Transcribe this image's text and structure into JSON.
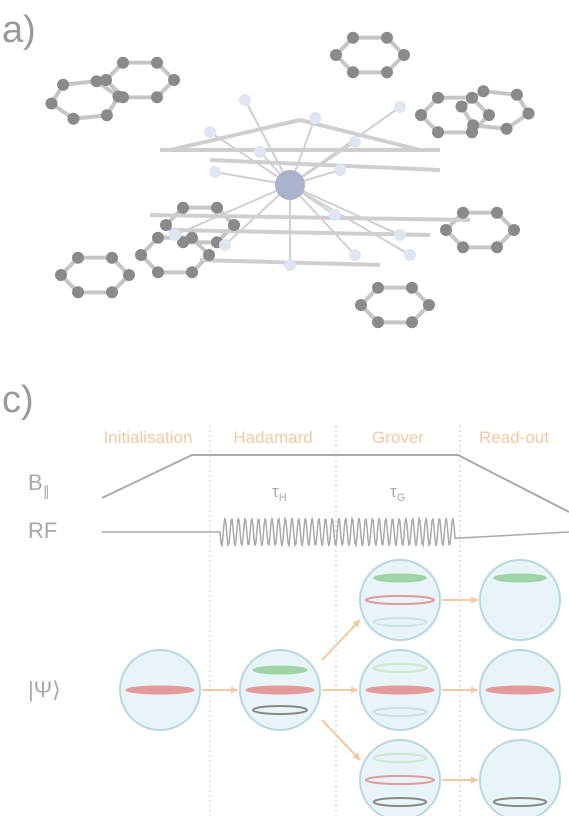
{
  "panels": {
    "a": {
      "label": "a)"
    },
    "c": {
      "label": "c)",
      "stages": [
        "Initialisation",
        "Hadamard",
        "Grover",
        "Read-out"
      ],
      "b_field": {
        "symbol": "B",
        "subscript": "∥"
      },
      "rf": "RF",
      "tau_h": {
        "symbol": "τ",
        "subscript": "H"
      },
      "tau_g": {
        "symbol": "τ",
        "subscript": "G"
      },
      "state": "|Ψ⟩"
    }
  }
}
